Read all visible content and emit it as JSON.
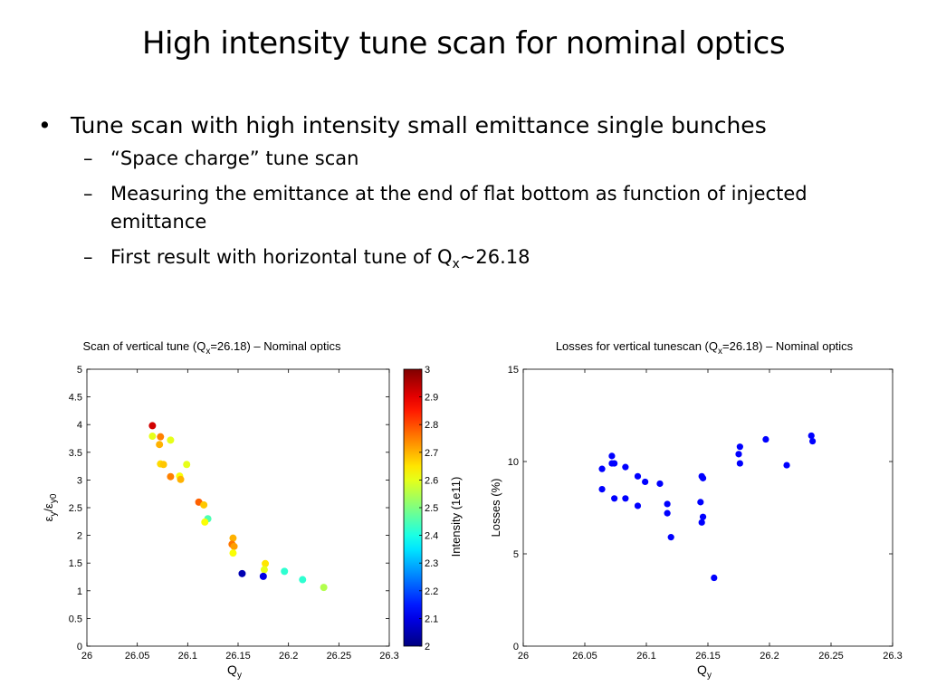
{
  "slide": {
    "title": "High intensity tune scan for nominal optics",
    "bullet_main": "Tune scan with high intensity small emittance single bunches",
    "sub_bullets": [
      "“Space charge” tune scan",
      "Measuring the emittance at the end of flat bottom as function of injected emittance"
    ],
    "sub3_prefix": "First result with horizontal tune of Q",
    "sub3_sub": "x",
    "sub3_suffix": "~26.18",
    "bullet_glyph": "•",
    "dash_glyph": "–"
  },
  "chart_data": [
    {
      "type": "scatter",
      "title": "Scan of vertical tune (Q=26.18) – Nominal optics",
      "title_parts": [
        "Scan of vertical tune (Q",
        "x",
        "=26.18) – Nominal optics"
      ],
      "xlabel": "Q",
      "xlabel_sub": "y",
      "ylabel": "ε/ε",
      "ylabel_subs": [
        "y",
        "y0"
      ],
      "xlim": [
        26,
        26.3
      ],
      "ylim": [
        0,
        5
      ],
      "xticks": [
        "26",
        "26.05",
        "26.1",
        "26.15",
        "26.2",
        "26.25",
        "26.3"
      ],
      "yticks": [
        "0",
        "0.5",
        "1",
        "1.5",
        "2",
        "2.5",
        "3",
        "3.5",
        "4",
        "4.5",
        "5"
      ],
      "colorbar": {
        "label": "Intensity (1e11)",
        "range": [
          2,
          3
        ],
        "ticks": [
          "2",
          "2.1",
          "2.2",
          "2.3",
          "2.4",
          "2.5",
          "2.6",
          "2.7",
          "2.8",
          "2.9",
          "3"
        ],
        "colormap": "jet"
      },
      "points": [
        {
          "x": 26.065,
          "y": 3.98,
          "c": 2.92
        },
        {
          "x": 26.065,
          "y": 3.79,
          "c": 2.6
        },
        {
          "x": 26.073,
          "y": 3.78,
          "c": 2.75
        },
        {
          "x": 26.072,
          "y": 3.64,
          "c": 2.7
        },
        {
          "x": 26.083,
          "y": 3.72,
          "c": 2.6
        },
        {
          "x": 26.073,
          "y": 3.29,
          "c": 2.66
        },
        {
          "x": 26.076,
          "y": 3.28,
          "c": 2.68
        },
        {
          "x": 26.083,
          "y": 3.06,
          "c": 2.75
        },
        {
          "x": 26.092,
          "y": 3.07,
          "c": 2.62
        },
        {
          "x": 26.093,
          "y": 3.01,
          "c": 2.7
        },
        {
          "x": 26.099,
          "y": 3.28,
          "c": 2.6
        },
        {
          "x": 26.111,
          "y": 2.6,
          "c": 2.78
        },
        {
          "x": 26.116,
          "y": 2.55,
          "c": 2.68
        },
        {
          "x": 26.12,
          "y": 2.3,
          "c": 2.45
        },
        {
          "x": 26.117,
          "y": 2.24,
          "c": 2.62
        },
        {
          "x": 26.145,
          "y": 1.95,
          "c": 2.7
        },
        {
          "x": 26.144,
          "y": 1.84,
          "c": 2.76
        },
        {
          "x": 26.146,
          "y": 1.8,
          "c": 2.72
        },
        {
          "x": 26.145,
          "y": 1.68,
          "c": 2.62
        },
        {
          "x": 26.177,
          "y": 1.49,
          "c": 2.65
        },
        {
          "x": 26.176,
          "y": 1.38,
          "c": 2.6
        },
        {
          "x": 26.154,
          "y": 1.31,
          "c": 2.05
        },
        {
          "x": 26.175,
          "y": 1.26,
          "c": 2.1
        },
        {
          "x": 26.196,
          "y": 1.35,
          "c": 2.42
        },
        {
          "x": 26.214,
          "y": 1.2,
          "c": 2.42
        },
        {
          "x": 26.235,
          "y": 1.06,
          "c": 2.55
        }
      ]
    },
    {
      "type": "scatter",
      "title": "Losses for vertical tunescan (Q=26.18) – Nominal optics",
      "title_parts": [
        "Losses for vertical tunescan (Q",
        "x",
        "=26.18) – Nominal optics"
      ],
      "xlabel": "Q",
      "xlabel_sub": "y",
      "ylabel": "Losses (%)",
      "xlim": [
        26,
        26.3
      ],
      "ylim": [
        0,
        15
      ],
      "xticks": [
        "26",
        "26.05",
        "26.1",
        "26.15",
        "26.2",
        "26.25",
        "26.3"
      ],
      "yticks": [
        "0",
        "5",
        "10",
        "15"
      ],
      "color": "#0000ff",
      "points": [
        {
          "x": 26.064,
          "y": 9.6
        },
        {
          "x": 26.064,
          "y": 8.5
        },
        {
          "x": 26.072,
          "y": 10.3
        },
        {
          "x": 26.072,
          "y": 9.9
        },
        {
          "x": 26.074,
          "y": 9.9
        },
        {
          "x": 26.074,
          "y": 8.0
        },
        {
          "x": 26.083,
          "y": 9.7
        },
        {
          "x": 26.083,
          "y": 8.0
        },
        {
          "x": 26.093,
          "y": 9.2
        },
        {
          "x": 26.093,
          "y": 7.6
        },
        {
          "x": 26.099,
          "y": 8.9
        },
        {
          "x": 26.111,
          "y": 8.8
        },
        {
          "x": 26.117,
          "y": 7.7
        },
        {
          "x": 26.117,
          "y": 7.2
        },
        {
          "x": 26.12,
          "y": 5.9
        },
        {
          "x": 26.145,
          "y": 9.2
        },
        {
          "x": 26.146,
          "y": 9.1
        },
        {
          "x": 26.144,
          "y": 7.8
        },
        {
          "x": 26.146,
          "y": 7.0
        },
        {
          "x": 26.145,
          "y": 6.7
        },
        {
          "x": 26.155,
          "y": 3.7
        },
        {
          "x": 26.176,
          "y": 10.8
        },
        {
          "x": 26.175,
          "y": 10.4
        },
        {
          "x": 26.176,
          "y": 9.9
        },
        {
          "x": 26.197,
          "y": 11.2
        },
        {
          "x": 26.214,
          "y": 9.8
        },
        {
          "x": 26.234,
          "y": 11.4
        },
        {
          "x": 26.235,
          "y": 11.1
        }
      ]
    }
  ]
}
